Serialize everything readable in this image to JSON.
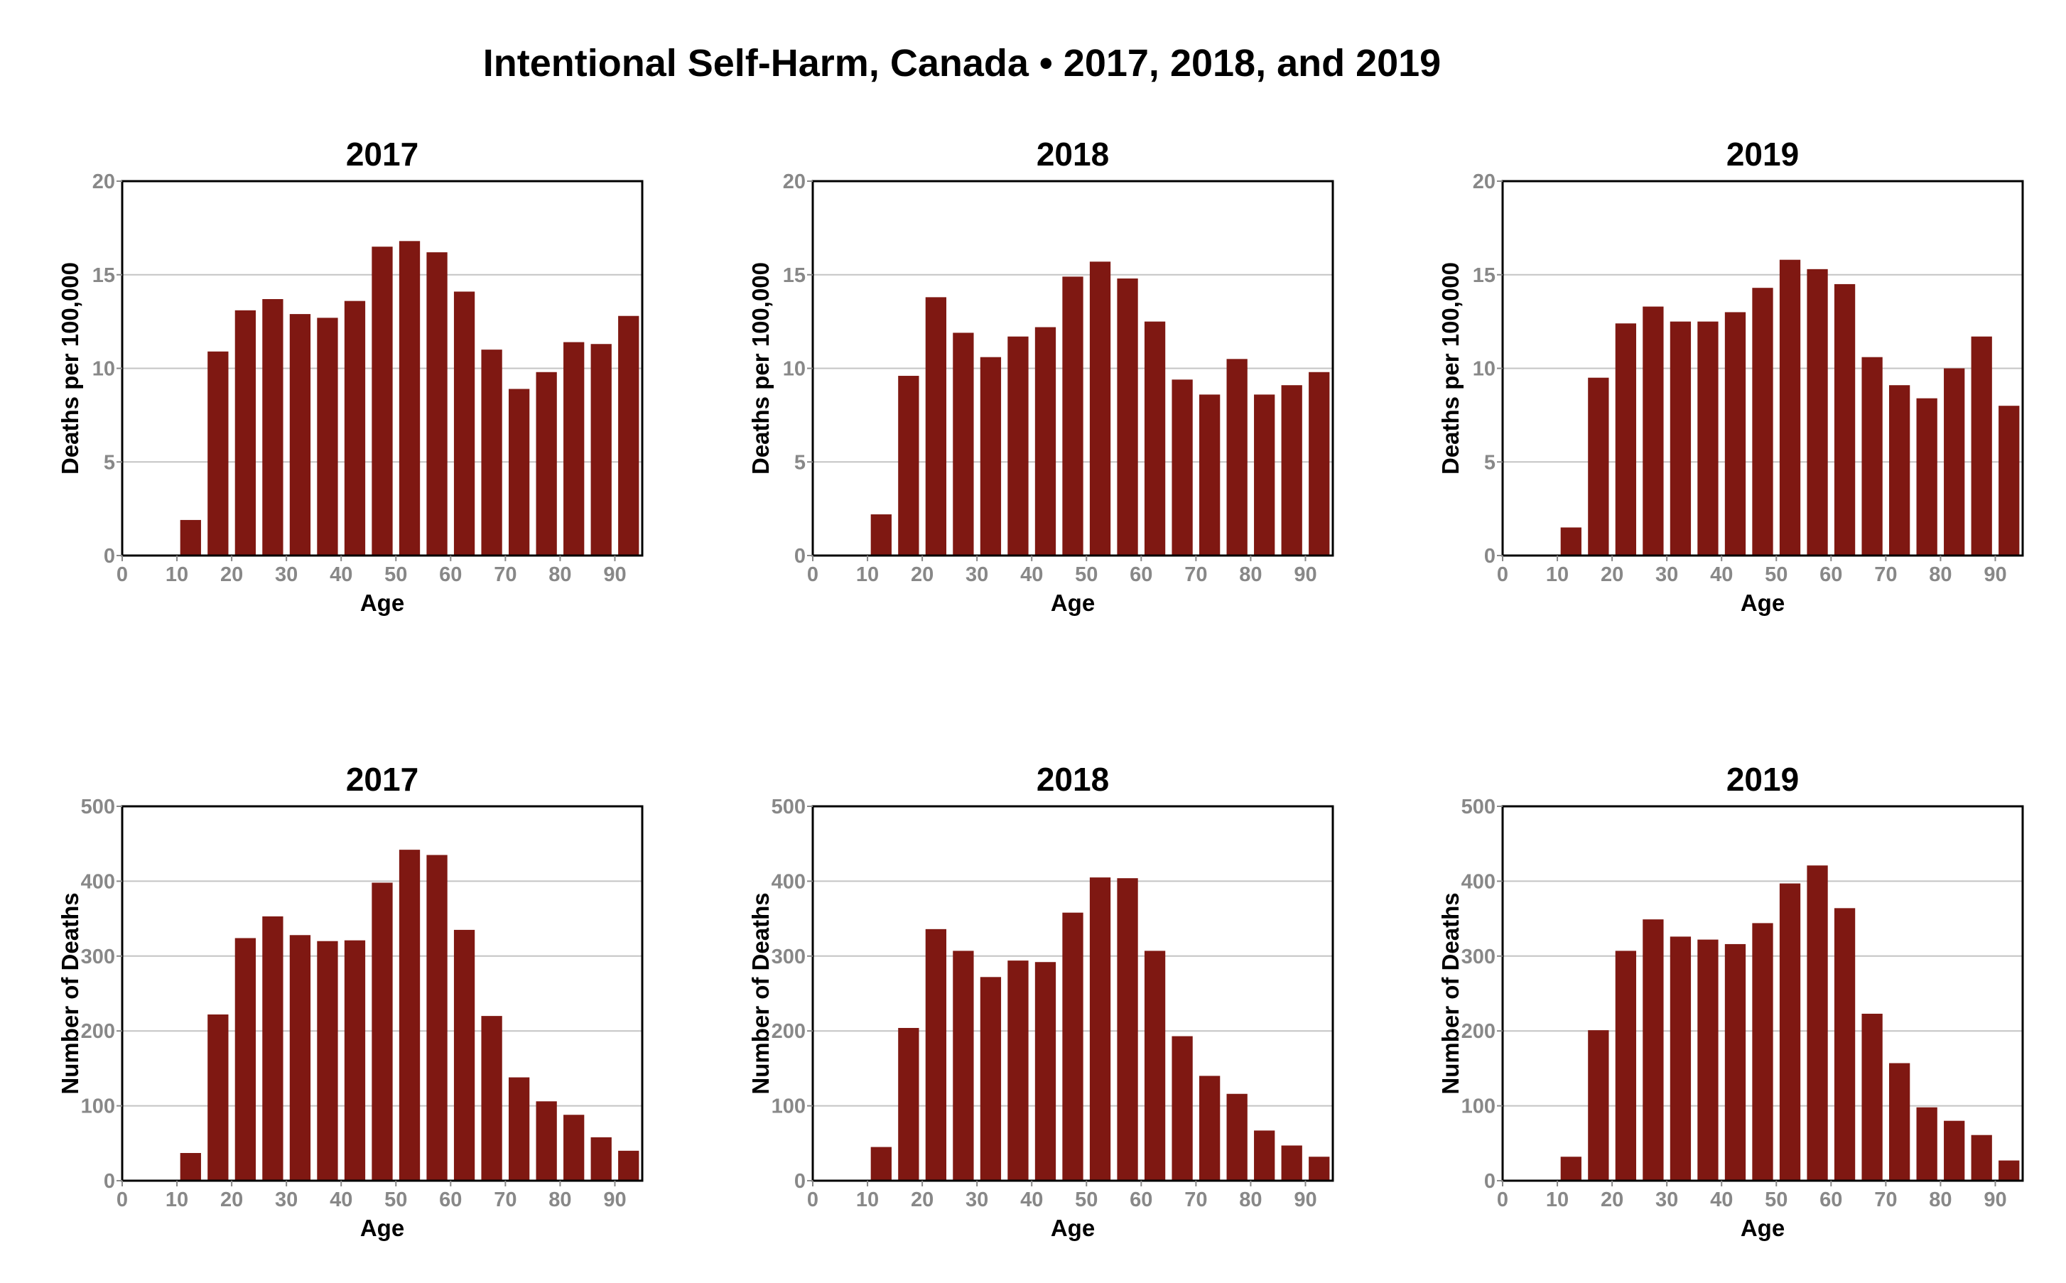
{
  "title": "Intentional Self-Harm, Canada • 2017, 2018, and 2019",
  "colors": {
    "bar": "#7f1812",
    "grid": "#c4c4c4",
    "tick": "#888888"
  },
  "chart_data": [
    {
      "type": "bar",
      "title": "2017",
      "xlabel": "Age",
      "ylabel": "Deaths per 100,000",
      "xlim": [
        0,
        95
      ],
      "ylim": [
        0,
        20
      ],
      "yticks": [
        0,
        5,
        10,
        15,
        20
      ],
      "xticks": [
        0,
        10,
        20,
        30,
        40,
        50,
        60,
        70,
        80,
        90
      ],
      "grid": true,
      "bar_width": 3.8,
      "x": [
        2.5,
        7.5,
        12.5,
        17.5,
        22.5,
        27.5,
        32.5,
        37.5,
        42.5,
        47.5,
        52.5,
        57.5,
        62.5,
        67.5,
        72.5,
        77.5,
        82.5,
        87.5,
        92.5
      ],
      "values": [
        0,
        0,
        1.9,
        10.9,
        13.1,
        13.7,
        12.9,
        12.7,
        13.6,
        16.5,
        16.8,
        16.2,
        14.1,
        11.0,
        8.9,
        9.8,
        11.4,
        11.3,
        12.8
      ]
    },
    {
      "type": "bar",
      "title": "2018",
      "xlabel": "Age",
      "ylabel": "Deaths per 100,000",
      "xlim": [
        0,
        95
      ],
      "ylim": [
        0,
        20
      ],
      "yticks": [
        0,
        5,
        10,
        15,
        20
      ],
      "xticks": [
        0,
        10,
        20,
        30,
        40,
        50,
        60,
        70,
        80,
        90
      ],
      "grid": true,
      "bar_width": 3.8,
      "x": [
        2.5,
        7.5,
        12.5,
        17.5,
        22.5,
        27.5,
        32.5,
        37.5,
        42.5,
        47.5,
        52.5,
        57.5,
        62.5,
        67.5,
        72.5,
        77.5,
        82.5,
        87.5,
        92.5
      ],
      "values": [
        0,
        0,
        2.2,
        9.6,
        13.8,
        11.9,
        10.6,
        11.7,
        12.2,
        14.9,
        15.7,
        14.8,
        12.5,
        9.4,
        8.6,
        10.5,
        8.6,
        9.1,
        9.8
      ]
    },
    {
      "type": "bar",
      "title": "2019",
      "xlabel": "Age",
      "ylabel": "Deaths per 100,000",
      "xlim": [
        0,
        95
      ],
      "ylim": [
        0,
        20
      ],
      "yticks": [
        0,
        5,
        10,
        15,
        20
      ],
      "xticks": [
        0,
        10,
        20,
        30,
        40,
        50,
        60,
        70,
        80,
        90
      ],
      "grid": true,
      "bar_width": 3.8,
      "x": [
        2.5,
        7.5,
        12.5,
        17.5,
        22.5,
        27.5,
        32.5,
        37.5,
        42.5,
        47.5,
        52.5,
        57.5,
        62.5,
        67.5,
        72.5,
        77.5,
        82.5,
        87.5,
        92.5
      ],
      "values": [
        0,
        0,
        1.5,
        9.5,
        12.4,
        13.3,
        12.5,
        12.5,
        13.0,
        14.3,
        15.8,
        15.3,
        14.5,
        10.6,
        9.1,
        8.4,
        10.0,
        11.7,
        8.0
      ]
    },
    {
      "type": "bar",
      "title": "2017",
      "xlabel": "Age",
      "ylabel": "Number of Deaths",
      "xlim": [
        0,
        95
      ],
      "ylim": [
        0,
        500
      ],
      "yticks": [
        0,
        100,
        200,
        300,
        400,
        500
      ],
      "xticks": [
        0,
        10,
        20,
        30,
        40,
        50,
        60,
        70,
        80,
        90
      ],
      "grid": true,
      "bar_width": 3.8,
      "x": [
        2.5,
        7.5,
        12.5,
        17.5,
        22.5,
        27.5,
        32.5,
        37.5,
        42.5,
        47.5,
        52.5,
        57.5,
        62.5,
        67.5,
        72.5,
        77.5,
        82.5,
        87.5,
        92.5
      ],
      "values": [
        0,
        0,
        37,
        222,
        324,
        353,
        328,
        320,
        321,
        398,
        442,
        435,
        335,
        220,
        138,
        106,
        88,
        58,
        40
      ]
    },
    {
      "type": "bar",
      "title": "2018",
      "xlabel": "Age",
      "ylabel": "Number of Deaths",
      "xlim": [
        0,
        95
      ],
      "ylim": [
        0,
        500
      ],
      "yticks": [
        0,
        100,
        200,
        300,
        400,
        500
      ],
      "xticks": [
        0,
        10,
        20,
        30,
        40,
        50,
        60,
        70,
        80,
        90
      ],
      "grid": true,
      "bar_width": 3.8,
      "x": [
        2.5,
        7.5,
        12.5,
        17.5,
        22.5,
        27.5,
        32.5,
        37.5,
        42.5,
        47.5,
        52.5,
        57.5,
        62.5,
        67.5,
        72.5,
        77.5,
        82.5,
        87.5,
        92.5
      ],
      "values": [
        0,
        0,
        45,
        204,
        336,
        307,
        272,
        294,
        292,
        358,
        405,
        404,
        307,
        193,
        140,
        116,
        67,
        47,
        32
      ]
    },
    {
      "type": "bar",
      "title": "2019",
      "xlabel": "Age",
      "ylabel": "Number of Deaths",
      "xlim": [
        0,
        95
      ],
      "ylim": [
        0,
        500
      ],
      "yticks": [
        0,
        100,
        200,
        300,
        400,
        500
      ],
      "xticks": [
        0,
        10,
        20,
        30,
        40,
        50,
        60,
        70,
        80,
        90
      ],
      "grid": true,
      "bar_width": 3.8,
      "x": [
        2.5,
        7.5,
        12.5,
        17.5,
        22.5,
        27.5,
        32.5,
        37.5,
        42.5,
        47.5,
        52.5,
        57.5,
        62.5,
        67.5,
        72.5,
        77.5,
        82.5,
        87.5,
        92.5
      ],
      "values": [
        0,
        0,
        32,
        201,
        307,
        349,
        326,
        322,
        316,
        344,
        397,
        421,
        364,
        223,
        157,
        98,
        80,
        61,
        27
      ]
    }
  ]
}
